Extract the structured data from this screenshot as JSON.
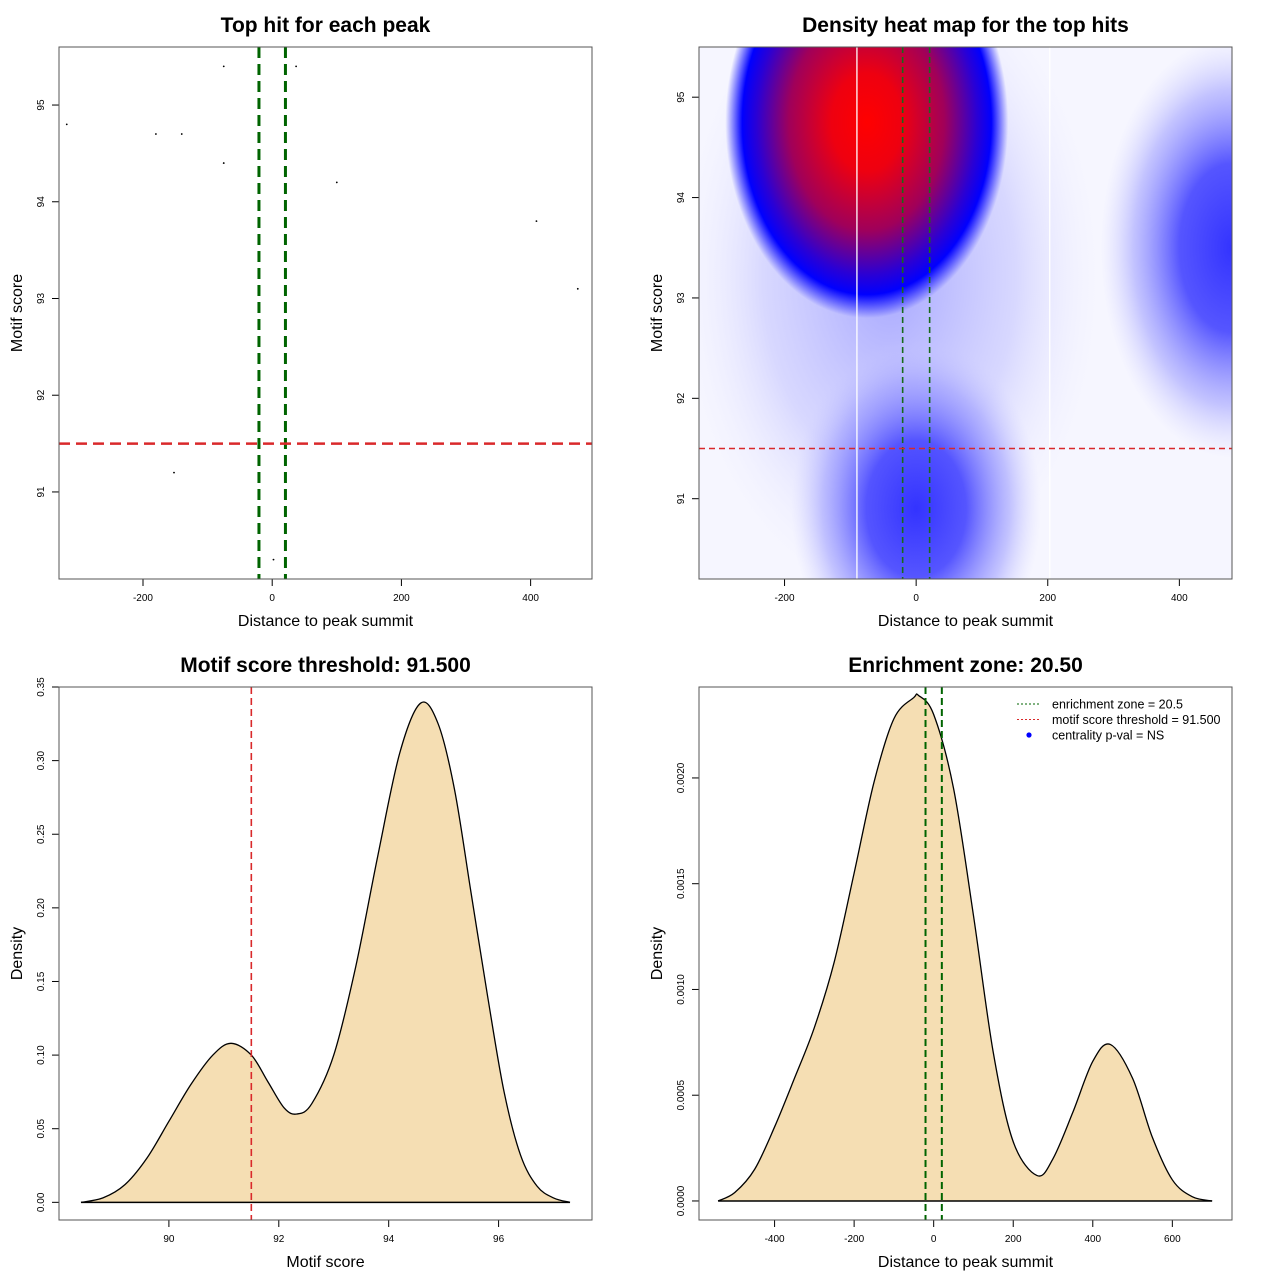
{
  "chart_data": [
    {
      "id": "scatter",
      "type": "scatter",
      "title": "Top hit for each peak",
      "xlabel": "Distance to peak summit",
      "ylabel": "Motif score",
      "xlim": [
        -330,
        495
      ],
      "ylim": [
        90.1,
        95.6
      ],
      "xticks": [
        -200,
        0,
        200,
        400
      ],
      "yticks": [
        91,
        92,
        93,
        94,
        95
      ],
      "points": [
        {
          "x": -318,
          "y": 94.8
        },
        {
          "x": -180,
          "y": 94.7
        },
        {
          "x": -140,
          "y": 94.7
        },
        {
          "x": -75,
          "y": 95.4
        },
        {
          "x": -75,
          "y": 94.4
        },
        {
          "x": 37,
          "y": 95.4
        },
        {
          "x": 100,
          "y": 94.2
        },
        {
          "x": 409,
          "y": 93.8
        },
        {
          "x": 473,
          "y": 93.1
        },
        {
          "x": 26,
          "y": 91.5
        },
        {
          "x": -152,
          "y": 91.2
        },
        {
          "x": 2,
          "y": 90.3
        }
      ],
      "vlines": [
        -20.5,
        20.5
      ],
      "hline": 91.5,
      "colors": {
        "vline": "#006400",
        "hline": "#d9292b"
      }
    },
    {
      "id": "heatmap",
      "type": "heatmap",
      "title": "Density heat map for the top hits",
      "xlabel": "Distance to peak summit",
      "ylabel": "Motif score",
      "xlim": [
        -330,
        480
      ],
      "ylim": [
        90.2,
        95.5
      ],
      "xticks": [
        -200,
        0,
        200,
        400
      ],
      "yticks": [
        91,
        92,
        93,
        94,
        95
      ],
      "density_peaks": [
        {
          "x": -75,
          "y": 94.75,
          "level": "high"
        },
        {
          "x": 0,
          "y": 90.9,
          "level": "medium"
        },
        {
          "x": 480,
          "y": 93.5,
          "level": "medium"
        }
      ],
      "white_vlines": [
        -90,
        203
      ],
      "vlines": [
        -20.5,
        20.5
      ],
      "hline": 91.5,
      "colormap": [
        "#ffffff",
        "#0000ff",
        "#ff0000"
      ]
    },
    {
      "id": "score-density",
      "type": "area",
      "title": "Motif score threshold: 91.500",
      "xlabel": "Motif score",
      "ylabel": "Density",
      "xlim": [
        88.0,
        97.7
      ],
      "ylim": [
        -0.012,
        0.35
      ],
      "xticks": [
        90,
        92,
        94,
        96
      ],
      "yticks": [
        "0.00",
        "0.05",
        "0.10",
        "0.15",
        "0.20",
        "0.25",
        "0.30",
        "0.35"
      ],
      "x": [
        88.4,
        88.8,
        89.2,
        89.6,
        90.0,
        90.4,
        90.8,
        91.13,
        91.5,
        91.8,
        92.1,
        92.33,
        92.6,
        93.0,
        93.4,
        93.8,
        94.2,
        94.58,
        94.9,
        95.2,
        95.5,
        95.8,
        96.1,
        96.4,
        96.7,
        97.0,
        97.3
      ],
      "y": [
        0,
        0.003,
        0.012,
        0.03,
        0.055,
        0.08,
        0.1,
        0.108,
        0.1,
        0.082,
        0.064,
        0.06,
        0.067,
        0.1,
        0.16,
        0.235,
        0.305,
        0.339,
        0.325,
        0.28,
        0.21,
        0.14,
        0.075,
        0.032,
        0.011,
        0.003,
        0
      ],
      "vline": 91.5,
      "colors": {
        "fill": "#f5deb3",
        "vline": "#d9292b"
      }
    },
    {
      "id": "distance-density",
      "type": "area",
      "title": "Enrichment zone: 20.50",
      "xlabel": "Distance to peak summit",
      "ylabel": "Density",
      "xlim": [
        -590,
        750
      ],
      "ylim": [
        -9e-05,
        0.00243
      ],
      "xticks": [
        -400,
        -200,
        0,
        200,
        400,
        600
      ],
      "yticks": [
        "0.0000",
        "0.0005",
        "0.0010",
        "0.0015",
        "0.0020"
      ],
      "x": [
        -542,
        -500,
        -450,
        -400,
        -350,
        -300,
        -250,
        -200,
        -150,
        -100,
        -50,
        -38,
        0,
        50,
        100,
        150,
        200,
        260,
        300,
        350,
        400,
        444,
        500,
        550,
        600,
        650,
        700
      ],
      "y": [
        0,
        4e-05,
        0.00015,
        0.00035,
        0.00058,
        0.00082,
        0.00113,
        0.00155,
        0.00198,
        0.00228,
        0.00238,
        0.00239,
        0.0023,
        0.00195,
        0.00135,
        0.0007,
        0.00028,
        0.00012,
        0.0002,
        0.00042,
        0.00066,
        0.00074,
        0.00058,
        0.0003,
        0.0001,
        2e-05,
        0
      ],
      "vlines": [
        -20.5,
        20.5
      ],
      "legend": {
        "position": "top-right",
        "entries": [
          {
            "label": "enrichment zone = 20.5",
            "symbol": "dotted-line",
            "color": "#006400"
          },
          {
            "label": "motif score threshold = 91.500",
            "symbol": "dotted-line",
            "color": "#d9292b"
          },
          {
            "label": "centrality p-val = NS",
            "symbol": "dot",
            "color": "#0000ff"
          }
        ]
      },
      "colors": {
        "fill": "#f5deb3",
        "vline": "#006400"
      }
    }
  ]
}
